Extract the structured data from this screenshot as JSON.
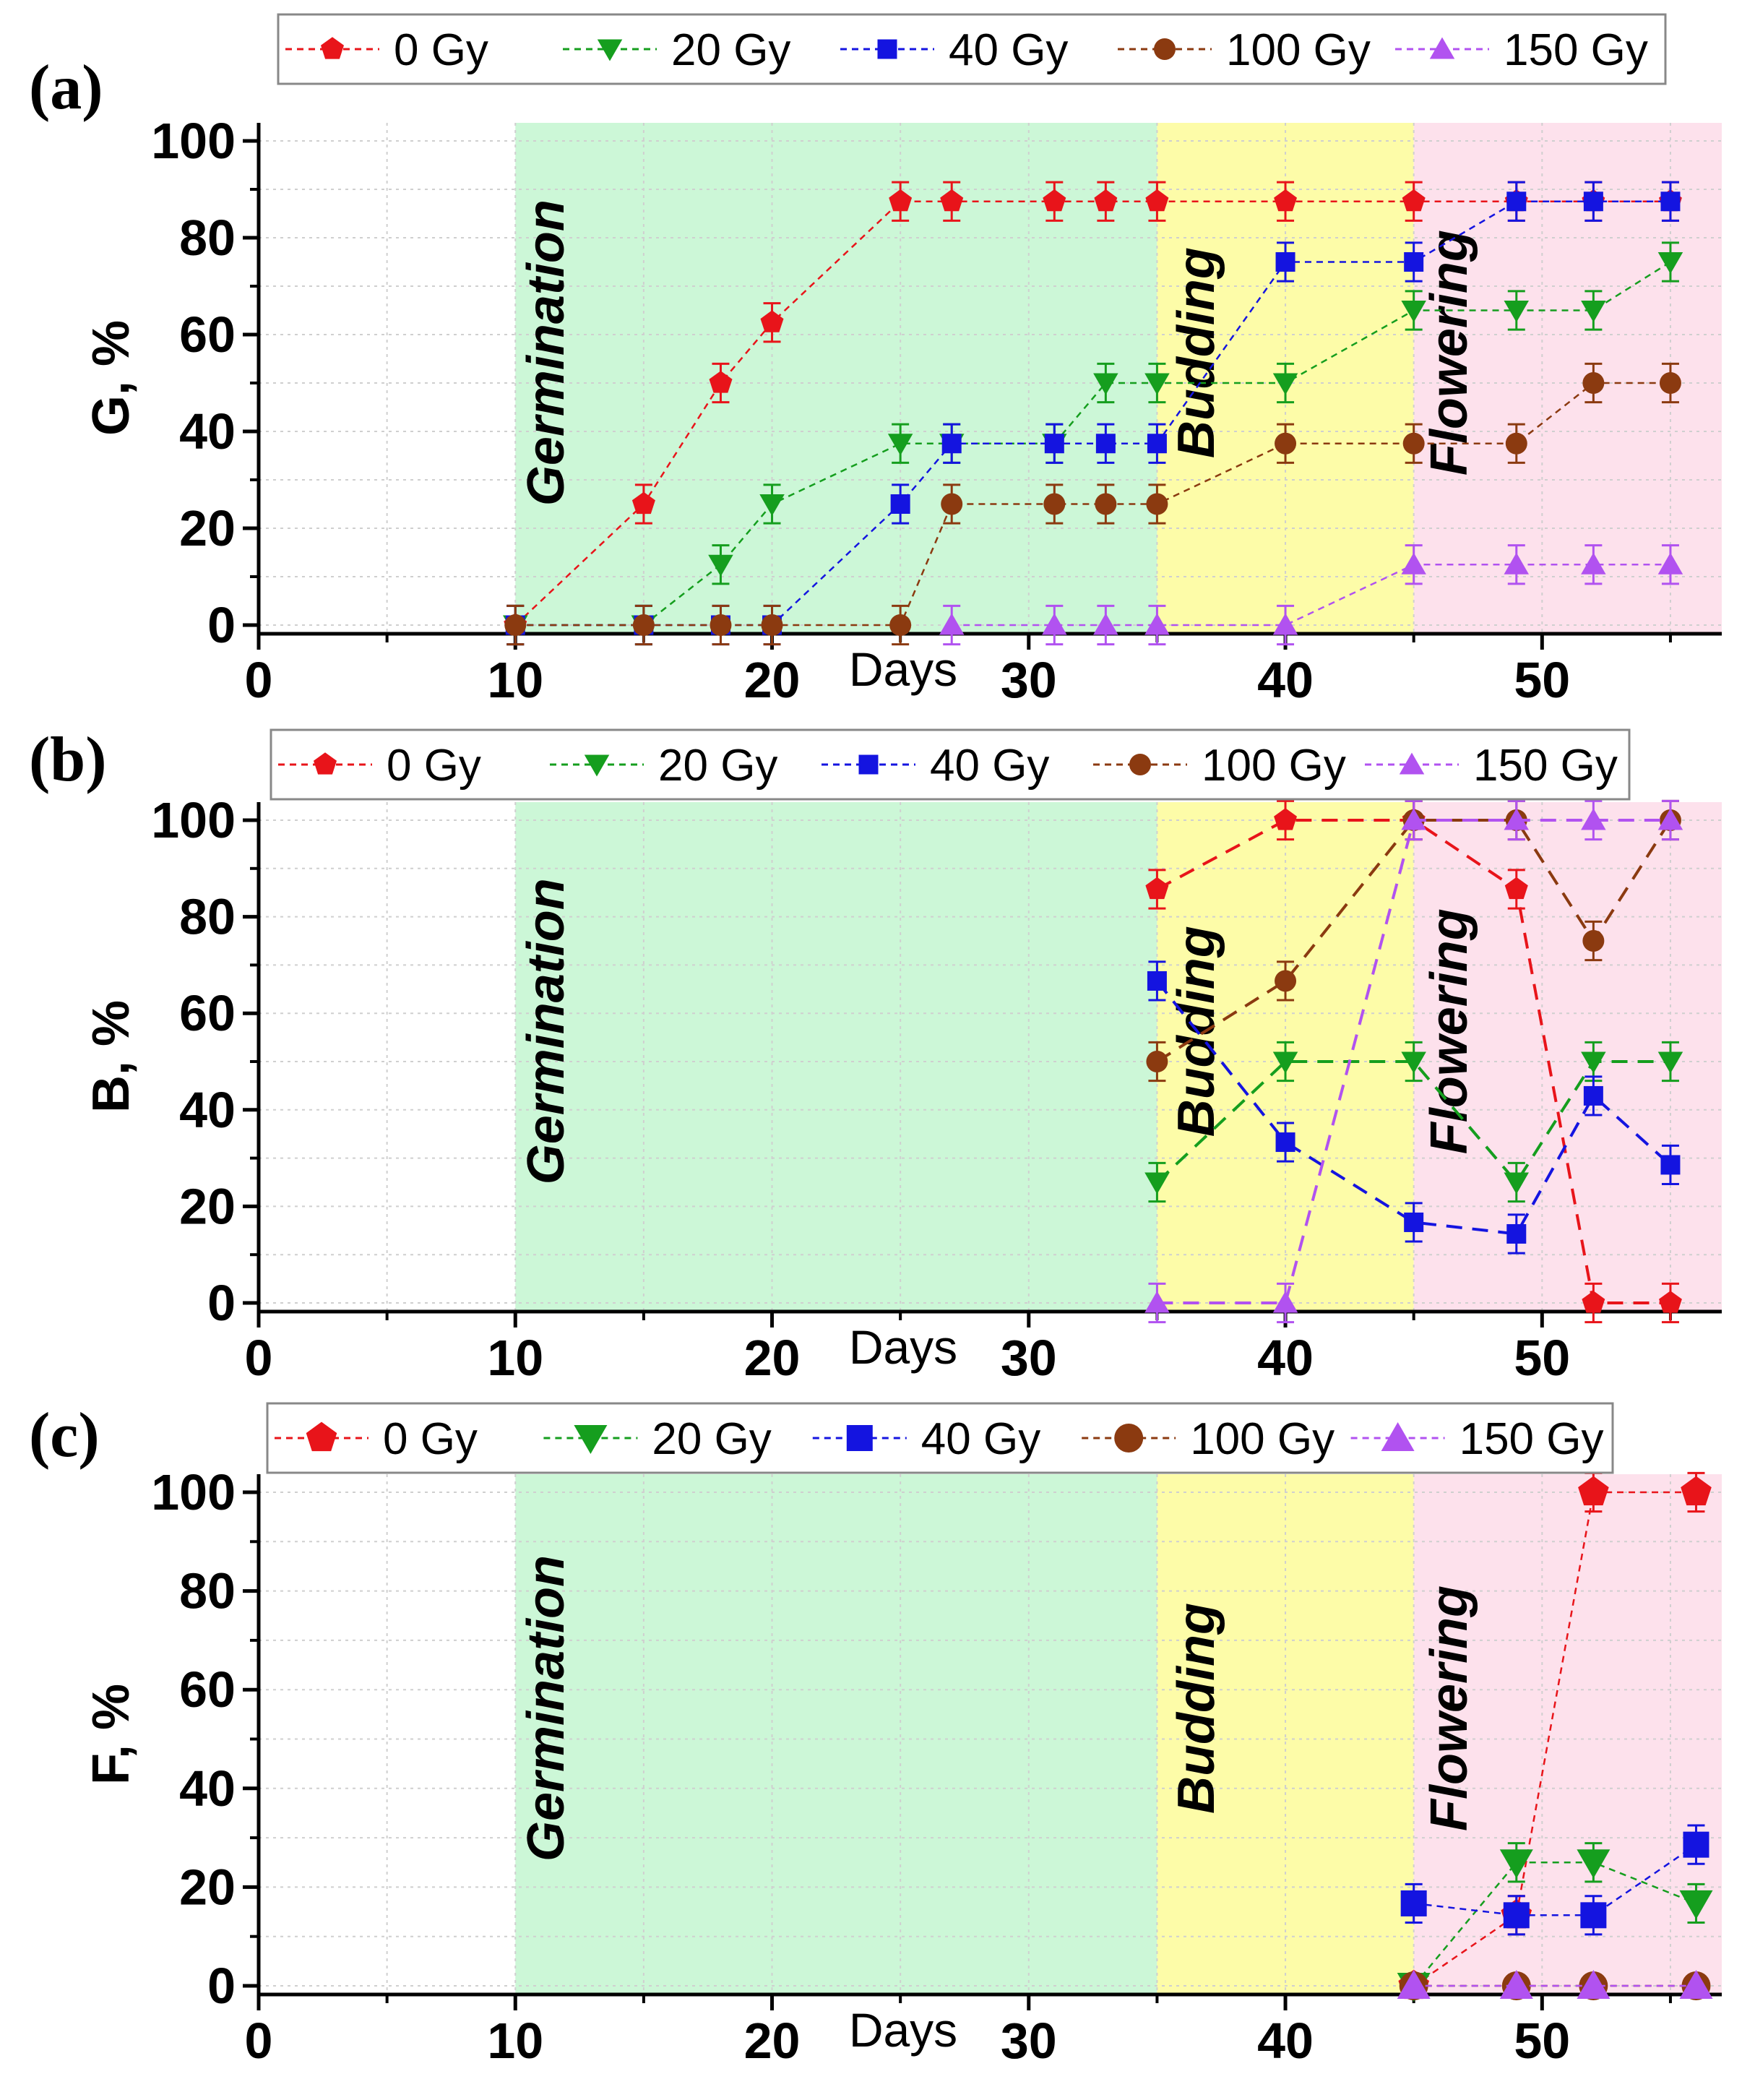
{
  "colors": {
    "germination_bg": "#ccf7d7",
    "budding_bg": "#fdfca8",
    "flowering_bg": "#fde1ec",
    "gy0": "#e8141a",
    "gy20": "#159e1e",
    "gy40": "#1414e0",
    "gy100": "#8b3a10",
    "gy150": "#b152f0"
  },
  "chart_data": [
    {
      "type": "line",
      "panel_label": "(a)",
      "xlabel": "Days",
      "ylabel": "G, %",
      "xlim": [
        0,
        57
      ],
      "ylim": [
        0,
        100
      ],
      "x_ticks": [
        "0",
        "10",
        "20",
        "30",
        "40",
        "50"
      ],
      "y_ticks": [
        "0",
        "20",
        "40",
        "60",
        "80",
        "100"
      ],
      "grid": true,
      "legend_position": "top",
      "phases": [
        {
          "label": "Germination",
          "from": 10,
          "to": 35
        },
        {
          "label": "Budding",
          "from": 35,
          "to": 45
        },
        {
          "label": "Flowering",
          "from": 45,
          "to": 57
        }
      ],
      "series": [
        {
          "name": "0 Gy",
          "marker": "pentagon",
          "x": [
            10,
            15,
            18,
            20,
            25,
            27,
            31,
            33,
            35,
            40,
            45,
            49,
            52,
            55
          ],
          "values": [
            0,
            25,
            50,
            62.5,
            87.5,
            87.5,
            87.5,
            87.5,
            87.5,
            87.5,
            87.5,
            87.5,
            87.5,
            87.5
          ]
        },
        {
          "name": "20 Gy",
          "marker": "triangle-down",
          "x": [
            10,
            15,
            18,
            20,
            25,
            27,
            31,
            33,
            35,
            40,
            45,
            49,
            52,
            55
          ],
          "values": [
            0,
            0,
            12.5,
            25,
            37.5,
            37.5,
            37.5,
            50,
            50,
            50,
            65,
            65,
            65,
            75
          ]
        },
        {
          "name": "40 Gy",
          "marker": "square",
          "x": [
            10,
            15,
            18,
            20,
            25,
            27,
            31,
            33,
            35,
            40,
            45,
            49,
            52,
            55
          ],
          "values": [
            0,
            0,
            0,
            0,
            25,
            37.5,
            37.5,
            37.5,
            37.5,
            75,
            75,
            87.5,
            87.5,
            87.5
          ]
        },
        {
          "name": "100 Gy",
          "marker": "circle",
          "x": [
            10,
            15,
            18,
            20,
            25,
            27,
            31,
            33,
            35,
            40,
            45,
            49,
            52,
            55
          ],
          "values": [
            0,
            0,
            0,
            0,
            0,
            25,
            25,
            25,
            25,
            37.5,
            37.5,
            37.5,
            50,
            50
          ]
        },
        {
          "name": "150 Gy",
          "marker": "triangle-up",
          "x": [
            27,
            31,
            33,
            35,
            40,
            45,
            49,
            52,
            55
          ],
          "values": [
            0,
            0,
            0,
            0,
            0,
            12.5,
            12.5,
            12.5,
            12.5
          ]
        }
      ]
    },
    {
      "type": "line",
      "panel_label": "(b)",
      "xlabel": "Days",
      "ylabel": "B, %",
      "xlim": [
        0,
        57
      ],
      "ylim": [
        0,
        100
      ],
      "x_ticks": [
        "0",
        "10",
        "20",
        "30",
        "40",
        "50"
      ],
      "y_ticks": [
        "0",
        "20",
        "40",
        "60",
        "80",
        "100"
      ],
      "grid": true,
      "legend_position": "top",
      "phases": [
        {
          "label": "Germination",
          "from": 10,
          "to": 35
        },
        {
          "label": "Budding",
          "from": 35,
          "to": 45
        },
        {
          "label": "Flowering",
          "from": 45,
          "to": 57
        }
      ],
      "series": [
        {
          "name": "0 Gy",
          "marker": "pentagon",
          "x": [
            35,
            40,
            45,
            49,
            52,
            55
          ],
          "values": [
            85.7,
            100,
            100,
            85.7,
            0,
            0
          ]
        },
        {
          "name": "20 Gy",
          "marker": "triangle-down",
          "x": [
            35,
            40,
            45,
            49,
            52,
            55
          ],
          "values": [
            25,
            50,
            50,
            25,
            50,
            50
          ]
        },
        {
          "name": "40 Gy",
          "marker": "square",
          "x": [
            35,
            40,
            45,
            49,
            52,
            55
          ],
          "values": [
            66.7,
            33.3,
            16.7,
            14.3,
            42.9,
            28.6
          ]
        },
        {
          "name": "100 Gy",
          "marker": "circle",
          "x": [
            35,
            40,
            45,
            49,
            52,
            55
          ],
          "values": [
            50,
            66.7,
            100,
            100,
            75,
            100
          ]
        },
        {
          "name": "150 Gy",
          "marker": "triangle-up",
          "x": [
            35,
            40,
            45,
            49,
            52,
            55
          ],
          "values": [
            0,
            0,
            100,
            100,
            100,
            100
          ]
        }
      ]
    },
    {
      "type": "line",
      "panel_label": "(c)",
      "xlabel": "Days",
      "ylabel": "F, %",
      "xlim": [
        0,
        57
      ],
      "ylim": [
        0,
        100
      ],
      "x_ticks": [
        "0",
        "10",
        "20",
        "30",
        "40",
        "50"
      ],
      "y_ticks": [
        "0",
        "20",
        "40",
        "60",
        "80",
        "100"
      ],
      "grid": true,
      "legend_position": "top",
      "phases": [
        {
          "label": "Germination",
          "from": 10,
          "to": 35
        },
        {
          "label": "Budding",
          "from": 35,
          "to": 45
        },
        {
          "label": "Flowering",
          "from": 45,
          "to": 57
        }
      ],
      "series": [
        {
          "name": "0 Gy",
          "marker": "pentagon",
          "x": [
            45,
            49,
            52,
            56
          ],
          "values": [
            0,
            14.3,
            100,
            100
          ]
        },
        {
          "name": "20 Gy",
          "marker": "triangle-down",
          "x": [
            45,
            49,
            52,
            56
          ],
          "values": [
            0,
            25,
            25,
            16.7
          ]
        },
        {
          "name": "40 Gy",
          "marker": "square",
          "x": [
            45,
            49,
            52,
            56
          ],
          "values": [
            16.7,
            14.3,
            14.3,
            28.6
          ]
        },
        {
          "name": "100 Gy",
          "marker": "circle",
          "x": [
            45,
            49,
            52,
            56
          ],
          "values": [
            0,
            0,
            0,
            0
          ]
        },
        {
          "name": "150 Gy",
          "marker": "triangle-up",
          "x": [
            45,
            49,
            52,
            56
          ],
          "values": [
            0,
            0,
            0,
            0
          ]
        }
      ]
    }
  ]
}
